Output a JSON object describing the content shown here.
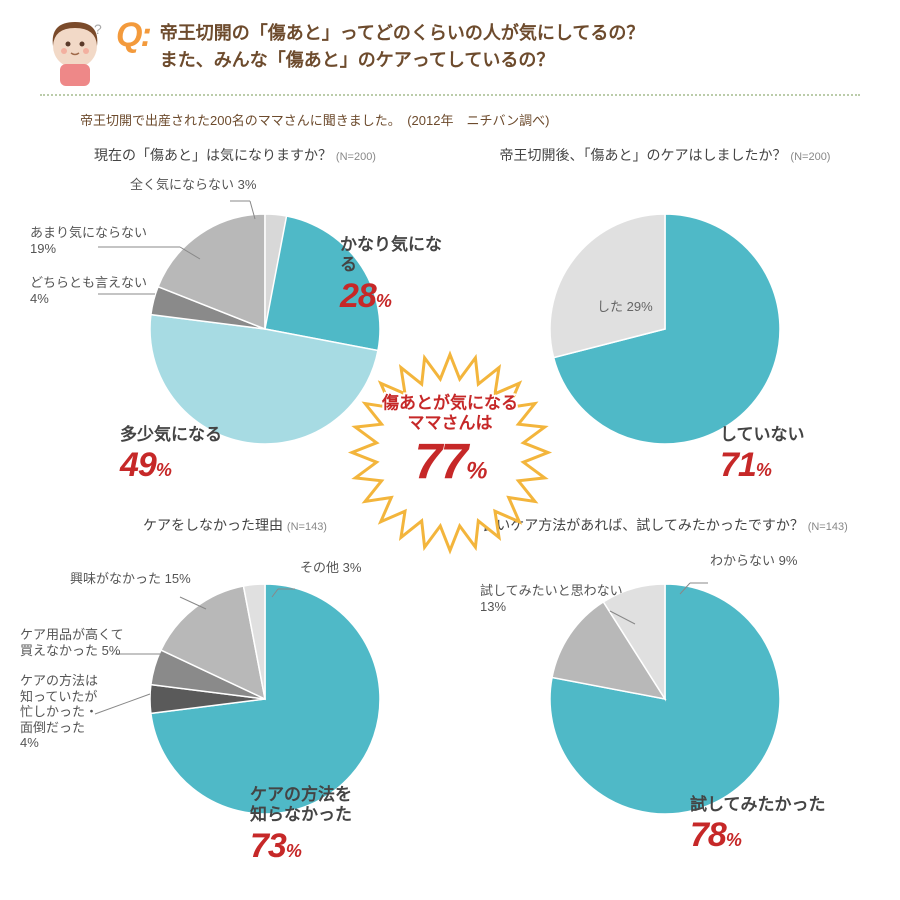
{
  "header": {
    "q_mark": "Q:",
    "question_line1": "帝王切開の「傷あと」ってどのくらいの人が気にしてるの？",
    "question_line2": "また、みんな「傷あと」のケアってしているの？"
  },
  "subtitle": "帝王切開で出産された200名のママさんに聞きました。　(2012年　ニチバン調べ)",
  "burst": {
    "line1": "傷あとが気になる",
    "line2": "ママさんは",
    "value": "77",
    "pct": "%",
    "star_fill": "#fff",
    "star_stroke": "#f3b53c"
  },
  "palette": {
    "teal": "#4fb9c7",
    "teal_light": "#a7dbe3",
    "gray_mid1": "#8a8a8a",
    "gray_mid2": "#b8b8b8",
    "gray_light": "#d8d8d8",
    "gray_pale": "#e8e8e8",
    "dark": "#5a5a5a"
  },
  "charts": [
    {
      "title": "現在の「傷あと」は気になりますか？",
      "n": "(N=200)",
      "radius": 115,
      "slices": [
        {
          "label": "かなり気になる",
          "value": 28,
          "color": "#4fb9c7",
          "callout": true
        },
        {
          "label": "多少気になる",
          "value": 49,
          "color": "#a7dbe3",
          "callout": true
        },
        {
          "label": "どちらとも言えない",
          "value": 4,
          "color": "#8a8a8a"
        },
        {
          "label": "あまり気にならない",
          "value": 19,
          "color": "#b8b8b8"
        },
        {
          "label": "全く気にならない",
          "value": 3,
          "color": "#d8d8d8"
        }
      ]
    },
    {
      "title": "帝王切開後、「傷あと」のケアはしましたか？",
      "n": "(N=200)",
      "radius": 115,
      "slices": [
        {
          "label": "していない",
          "value": 71,
          "color": "#4fb9c7",
          "callout": true
        },
        {
          "label": "した",
          "value": 29,
          "color": "#e0e0e0",
          "inner_label": "した 29%"
        }
      ]
    },
    {
      "title": "ケアをしなかった理由",
      "n": "(N=143)",
      "radius": 115,
      "slices": [
        {
          "label_l1": "ケアの方法を",
          "label_l2": "知らなかった",
          "value": 73,
          "color": "#4fb9c7",
          "callout": true
        },
        {
          "label_l1": "ケアの方法は",
          "label_l2": "知っていたが・",
          "label_l3": "忙しかった・",
          "label_l4": "面倒だった",
          "value": 4,
          "color": "#5a5a5a"
        },
        {
          "label_l1": "ケア用品が高くて",
          "label_l2": "買えなかった",
          "value": 5,
          "color": "#8a8a8a"
        },
        {
          "label": "興味がなかった",
          "value": 15,
          "color": "#b8b8b8"
        },
        {
          "label": "その他",
          "value": 3,
          "color": "#e0e0e0"
        }
      ]
    },
    {
      "title": "良いケア方法があれば、試してみたかったですか？",
      "n": "(N=143)",
      "radius": 115,
      "slices": [
        {
          "label": "試してみたかった",
          "value": 78,
          "color": "#4fb9c7",
          "callout": true
        },
        {
          "label": "試してみたいと思わない",
          "value": 13,
          "color": "#b8b8b8"
        },
        {
          "label": "わからない",
          "value": 9,
          "color": "#e0e0e0"
        }
      ]
    }
  ]
}
